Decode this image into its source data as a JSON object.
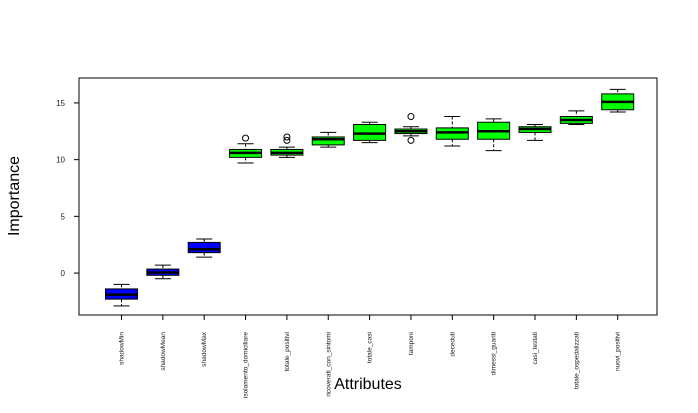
{
  "chart_data": {
    "type": "boxplot",
    "title": "",
    "xlabel": "Attributes",
    "ylabel": "Importance",
    "ylim": [
      -3.7,
      17.2
    ],
    "yticks": [
      0,
      5,
      10,
      15
    ],
    "grid": false,
    "legend": "none",
    "colors": {
      "shadow": "#0000ff",
      "confirmed": "#00ff00"
    },
    "categories": [
      "shadowMin",
      "shadowMean",
      "shadowMax",
      "isolamento_domiciliare",
      "totale_positivi",
      "ricoverati_con_sintomi",
      "totale_casi",
      "tamponi",
      "deceduti",
      "dimessi_guariti",
      "casi_testati",
      "totale_ospedalizzati",
      "nuovi_positivi"
    ],
    "series": [
      {
        "category": "shadowMin",
        "group": "shadow",
        "whisker_low": -2.9,
        "q1": -2.3,
        "median": -1.9,
        "q3": -1.4,
        "whisker_high": -1.0,
        "outliers": []
      },
      {
        "category": "shadowMean",
        "group": "shadow",
        "whisker_low": -0.5,
        "q1": -0.2,
        "median": 0.05,
        "q3": 0.35,
        "whisker_high": 0.7,
        "outliers": []
      },
      {
        "category": "shadowMax",
        "group": "shadow",
        "whisker_low": 1.4,
        "q1": 1.8,
        "median": 2.1,
        "q3": 2.7,
        "whisker_high": 3.0,
        "outliers": []
      },
      {
        "category": "isolamento_domiciliare",
        "group": "confirmed",
        "whisker_low": 9.7,
        "q1": 10.2,
        "median": 10.6,
        "q3": 10.9,
        "whisker_high": 11.4,
        "outliers": [
          11.9
        ]
      },
      {
        "category": "totale_positivi",
        "group": "confirmed",
        "whisker_low": 10.2,
        "q1": 10.4,
        "median": 10.6,
        "q3": 10.9,
        "whisker_high": 11.1,
        "outliers": [
          11.7,
          12.0
        ]
      },
      {
        "category": "ricoverati_con_sintomi",
        "group": "confirmed",
        "whisker_low": 11.1,
        "q1": 11.3,
        "median": 11.8,
        "q3": 12.0,
        "whisker_high": 12.4,
        "outliers": []
      },
      {
        "category": "totale_casi",
        "group": "confirmed",
        "whisker_low": 11.5,
        "q1": 11.7,
        "median": 12.3,
        "q3": 13.1,
        "whisker_high": 13.3,
        "outliers": []
      },
      {
        "category": "tamponi",
        "group": "confirmed",
        "whisker_low": 12.1,
        "q1": 12.3,
        "median": 12.5,
        "q3": 12.7,
        "whisker_high": 12.9,
        "outliers": [
          13.8,
          11.7
        ]
      },
      {
        "category": "deceduti",
        "group": "confirmed",
        "whisker_low": 11.2,
        "q1": 11.8,
        "median": 12.4,
        "q3": 12.8,
        "whisker_high": 13.8,
        "outliers": []
      },
      {
        "category": "dimessi_guariti",
        "group": "confirmed",
        "whisker_low": 10.8,
        "q1": 11.8,
        "median": 12.5,
        "q3": 13.3,
        "whisker_high": 13.6,
        "outliers": []
      },
      {
        "category": "casi_testati",
        "group": "confirmed",
        "whisker_low": 11.7,
        "q1": 12.4,
        "median": 12.7,
        "q3": 12.9,
        "whisker_high": 13.1,
        "outliers": []
      },
      {
        "category": "totale_ospedalizzati",
        "group": "confirmed",
        "whisker_low": 13.1,
        "q1": 13.2,
        "median": 13.5,
        "q3": 13.8,
        "whisker_high": 14.3,
        "outliers": []
      },
      {
        "category": "nuovi_positivi",
        "group": "confirmed",
        "whisker_low": 14.2,
        "q1": 14.4,
        "median": 15.1,
        "q3": 15.8,
        "whisker_high": 16.2,
        "outliers": []
      }
    ]
  }
}
